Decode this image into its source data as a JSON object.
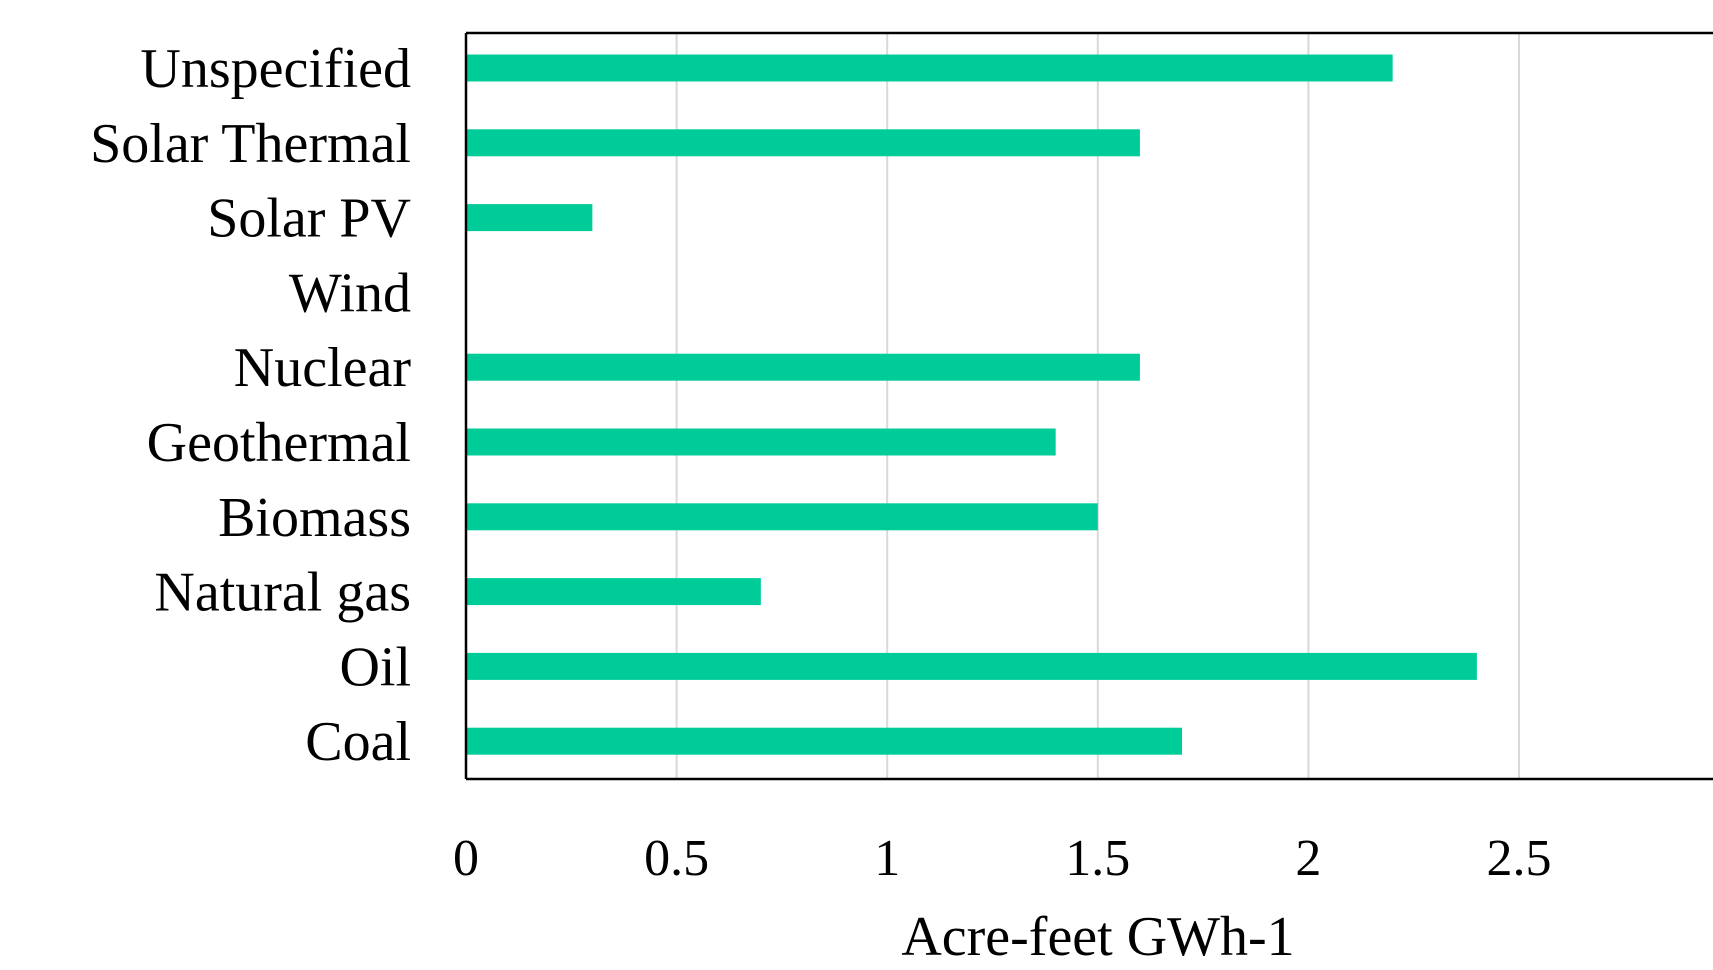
{
  "chart_data": {
    "type": "bar",
    "orientation": "horizontal",
    "categories": [
      "Unspecified",
      "Solar Thermal",
      "Solar PV",
      "Wind",
      "Nuclear",
      "Geothermal",
      "Biomass",
      "Natural gas",
      "Oil",
      "Coal"
    ],
    "values": [
      2.2,
      1.6,
      0.3,
      0,
      1.6,
      1.4,
      1.5,
      0.7,
      2.4,
      1.7
    ],
    "xlabel": "Acre-feet GWh-1",
    "ylabel": "",
    "xlim": [
      0,
      2.5
    ],
    "xticks": [
      0,
      0.5,
      1,
      1.5,
      2,
      2.5
    ],
    "xtick_labels": [
      "0",
      "0.5",
      "1",
      "1.5",
      "2",
      "2.5"
    ],
    "grid": "vertical",
    "bar_color": "#00CC99",
    "grid_color": "#D9D9D9",
    "axis_color": "#000000"
  }
}
